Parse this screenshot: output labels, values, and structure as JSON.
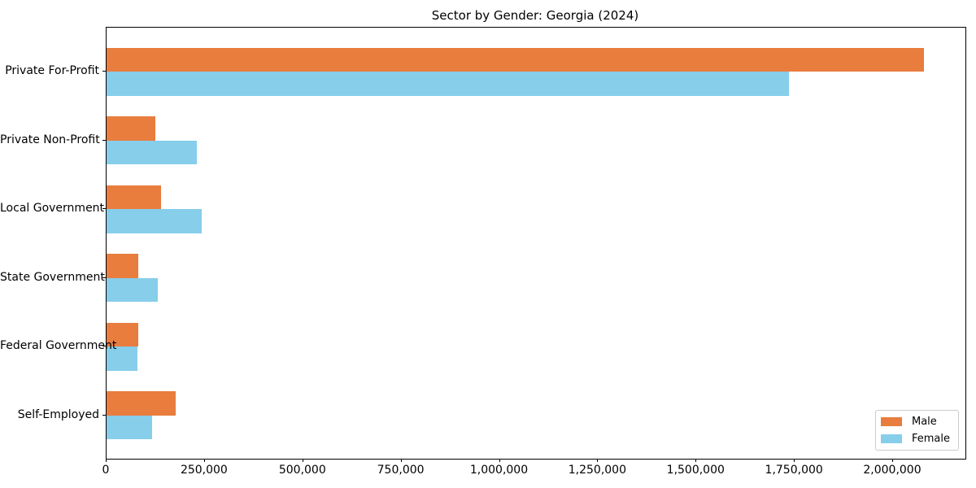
{
  "figure": {
    "background": "#ffffff"
  },
  "chart_data": {
    "type": "bar",
    "orientation": "horizontal",
    "title": "Sector by Gender: Georgia (2024)",
    "categories": [
      "Private For-Profit",
      "Private Non-Profit",
      "Local Government",
      "State Government",
      "Federal Government",
      "Self-Employed"
    ],
    "series": [
      {
        "name": "Male",
        "color": "#e87d3e",
        "values": [
          2078000,
          125000,
          138000,
          80000,
          81000,
          176000
        ]
      },
      {
        "name": "Female",
        "color": "#87ceeb",
        "values": [
          1736000,
          230000,
          241000,
          131000,
          78000,
          116000
        ]
      }
    ],
    "xlabel": "",
    "ylabel": "",
    "xlim": [
      0,
      2184000
    ],
    "x_ticks": [
      0,
      250000,
      500000,
      750000,
      1000000,
      1250000,
      1500000,
      1750000,
      2000000
    ],
    "x_tick_labels": [
      "0",
      "250,000",
      "500,000",
      "750,000",
      "1,000,000",
      "1,250,000",
      "1,500,000",
      "1,750,000",
      "2,000,000"
    ],
    "grid": false,
    "legend": {
      "position": "lower right",
      "entries": [
        "Male",
        "Female"
      ]
    }
  }
}
